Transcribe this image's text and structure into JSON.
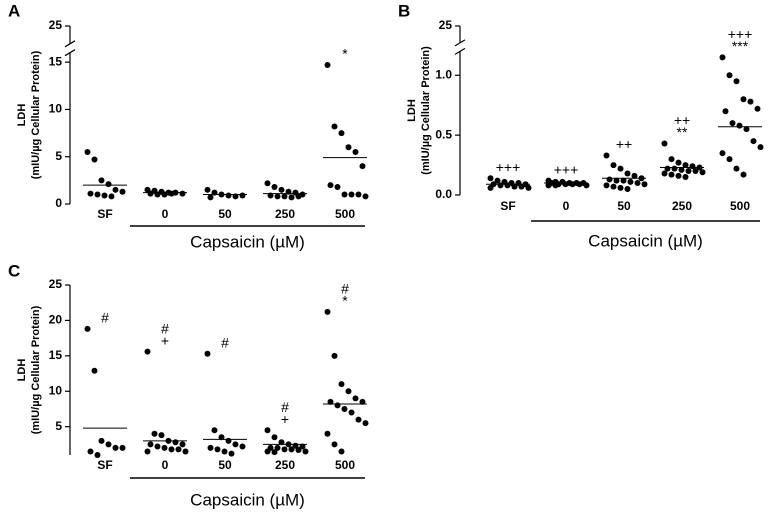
{
  "chart_data": [
    {
      "type": "strip",
      "panel": "A",
      "ylabel": [
        "LDH",
        "(mIU/µg Cellular Protein)"
      ],
      "xlabel": "Capsaicin (µM)",
      "categories": [
        "SF",
        "0",
        "50",
        "250",
        "500"
      ],
      "points": [
        [
          5.5,
          4.7,
          2.5,
          2.1,
          1.5,
          1.3,
          1.1,
          1.0,
          0.9,
          0.8
        ],
        [
          1.5,
          1.4,
          1.3,
          1.2,
          1.2,
          1.1,
          1.1,
          1.0,
          1.0,
          1.1
        ],
        [
          1.5,
          1.2,
          1.0,
          0.9,
          0.8,
          0.9,
          0.7
        ],
        [
          2.2,
          1.8,
          1.5,
          1.3,
          1.2,
          1.0,
          0.9,
          0.8,
          0.8,
          0.7,
          0.8
        ],
        [
          14.7,
          8.2,
          7.5,
          6.0,
          5.5,
          4.0,
          2.0,
          1.8,
          1.0,
          1.0,
          1.0,
          0.8
        ]
      ],
      "means": [
        2.0,
        1.2,
        1.0,
        1.1,
        4.9
      ],
      "annotations": [
        [],
        [],
        [],
        [],
        [
          "*"
        ]
      ],
      "ylim": [
        0,
        25
      ],
      "ybreak": [
        16,
        24
      ],
      "yticks": [
        0,
        5,
        10,
        15,
        25
      ]
    },
    {
      "type": "strip",
      "panel": "B",
      "ylabel": [
        "LDH",
        "(mIU/µg Cellular Protein)"
      ],
      "xlabel": "Capsaicin (µM)",
      "categories": [
        "SF",
        "0",
        "50",
        "250",
        "500"
      ],
      "points": [
        [
          0.14,
          0.12,
          0.11,
          0.1,
          0.1,
          0.09,
          0.09,
          0.08,
          0.08,
          0.07,
          0.07,
          0.06,
          0.06
        ],
        [
          0.12,
          0.11,
          0.11,
          0.1,
          0.1,
          0.1,
          0.1,
          0.09,
          0.09,
          0.09,
          0.09,
          0.08,
          0.08,
          0.08
        ],
        [
          0.33,
          0.25,
          0.22,
          0.18,
          0.16,
          0.14,
          0.13,
          0.12,
          0.12,
          0.11,
          0.1,
          0.09,
          0.08,
          0.07,
          0.06,
          0.05
        ],
        [
          0.43,
          0.3,
          0.27,
          0.25,
          0.24,
          0.23,
          0.22,
          0.22,
          0.21,
          0.2,
          0.2,
          0.19,
          0.18,
          0.17,
          0.16,
          0.15
        ],
        [
          1.15,
          1.0,
          0.95,
          0.8,
          0.78,
          0.72,
          0.7,
          0.6,
          0.58,
          0.55,
          0.45,
          0.4,
          0.35,
          0.3,
          0.22,
          0.17
        ]
      ],
      "means": [
        0.09,
        0.1,
        0.14,
        0.23,
        0.57
      ],
      "annotations": [
        [
          "+++"
        ],
        [
          "+++"
        ],
        [
          "++"
        ],
        [
          "++",
          "**"
        ],
        [
          "+++",
          "***"
        ]
      ],
      "ylim": [
        0,
        25
      ],
      "ybreak": [
        1.2,
        24
      ],
      "yticks": [
        {
          "value": 0,
          "label": "0.0"
        },
        {
          "value": 0.5,
          "label": "0.5"
        },
        {
          "value": 1,
          "label": "1.0"
        },
        25
      ]
    },
    {
      "type": "strip",
      "panel": "C",
      "ylabel": [
        "LDH",
        "(mIU/µg Cellular Protein)"
      ],
      "xlabel": "Capsaicin (µM)",
      "categories": [
        "SF",
        "0",
        "50",
        "250",
        "500"
      ],
      "points": [
        [
          18.8,
          12.9,
          3.0,
          2.5,
          2.0,
          2.0,
          1.5,
          1.0
        ],
        [
          15.6,
          4.0,
          3.8,
          3.0,
          2.8,
          2.5,
          2.5,
          2.2,
          2.0,
          1.8,
          1.8,
          1.5,
          1.5
        ],
        [
          15.3,
          4.5,
          3.5,
          3.0,
          2.5,
          2.2,
          2.0,
          1.8,
          1.5,
          1.2
        ],
        [
          4.5,
          3.5,
          2.8,
          2.5,
          2.3,
          2.2,
          2.0,
          2.0,
          1.8,
          1.8,
          1.7,
          1.5,
          1.5,
          1.4
        ],
        [
          21.2,
          15.0,
          11.0,
          10.0,
          9.0,
          8.5,
          8.5,
          8.0,
          7.5,
          7.0,
          6.0,
          5.5,
          4.0,
          2.5,
          1.5
        ]
      ],
      "means": [
        4.8,
        3.0,
        3.2,
        2.5,
        8.2
      ],
      "annotations": [
        [
          "#"
        ],
        [
          "#",
          "+"
        ],
        [
          "#"
        ],
        [
          "#",
          "+"
        ],
        [
          "#",
          "*"
        ]
      ],
      "ylim": [
        1,
        25
      ],
      "yticks": [
        5,
        10,
        15,
        20,
        25
      ]
    }
  ]
}
